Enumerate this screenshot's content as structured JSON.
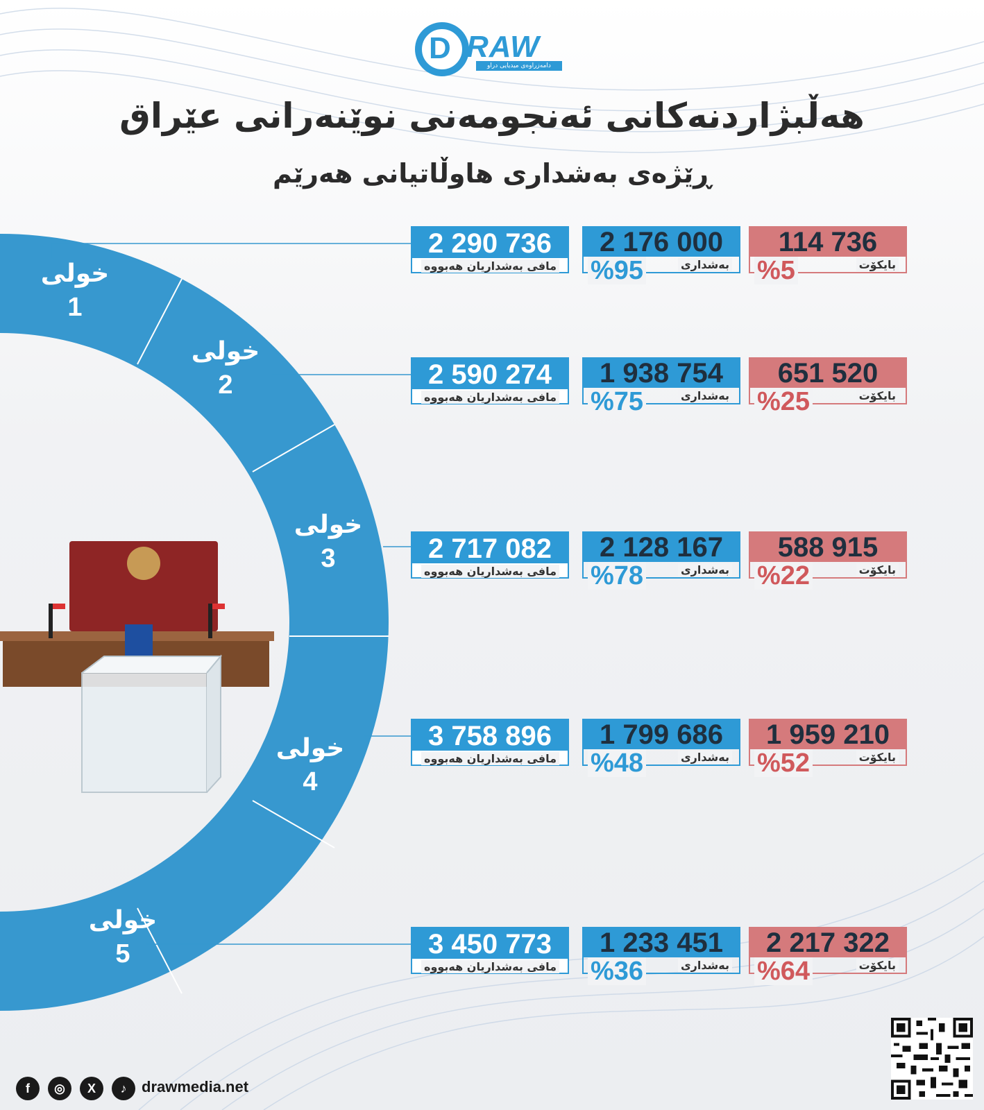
{
  "brand": {
    "logo_letter": "D",
    "logo_word": "RAW",
    "logo_tagline": "دامەزراوەی میدیایی دراو",
    "website": "drawmedia.net"
  },
  "title": "هەڵبژاردنەکانی ئەنجومەنی نوێنەرانی عێراق",
  "subtitle": "ڕێژەی بەشداری هاوڵاتیانی هەرێم",
  "colors": {
    "blue": "#2e9ad6",
    "red": "#d57a7c",
    "dark": "#2b2b2b"
  },
  "labels": {
    "round_word": "خولی",
    "eligible": "مافی بەشداریان هەبووە",
    "participation": "بەشداری",
    "boycott": "بایکۆت"
  },
  "rounds": [
    {
      "number": "1",
      "eligible": "2 290 736",
      "participated": "2 176 000",
      "participation_pct": "%95",
      "boycott": "114 736",
      "boycott_pct": "%5"
    },
    {
      "number": "2",
      "eligible": "2 590 274",
      "participated": "1 938 754",
      "participation_pct": "%75",
      "boycott": "651 520",
      "boycott_pct": "%25"
    },
    {
      "number": "3",
      "eligible": "2 717 082",
      "participated": "2 128 167",
      "participation_pct": "%78",
      "boycott": "588 915",
      "boycott_pct": "%22"
    },
    {
      "number": "4",
      "eligible": "3 758 896",
      "participated": "1 799 686",
      "participation_pct": "%48",
      "boycott": "1 959 210",
      "boycott_pct": "%52"
    },
    {
      "number": "5",
      "eligible": "3 450 773",
      "participated": "1 233 451",
      "participation_pct": "%36",
      "boycott": "2 217 322",
      "boycott_pct": "%64"
    }
  ],
  "social_icons": [
    "facebook-icon",
    "instagram-icon",
    "x-icon",
    "tiktok-icon"
  ],
  "social_glyphs": {
    "facebook": "f",
    "instagram": "◎",
    "x": "X",
    "tiktok": "♪"
  }
}
